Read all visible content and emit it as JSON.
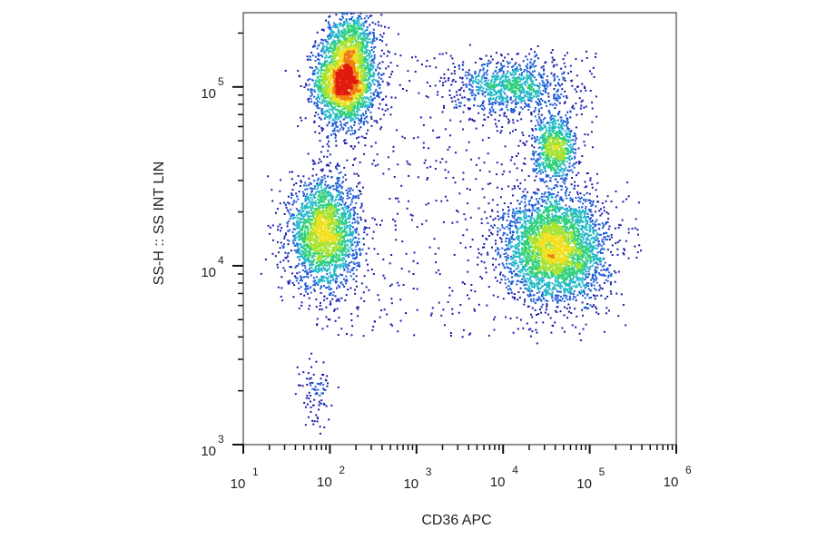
{
  "chart_data": {
    "type": "scatter",
    "subtype": "flow-cytometry density dot plot",
    "title": "",
    "xlabel": "CD36 APC",
    "ylabel": "SS-H :: SS INT LIN",
    "x_scale": "log",
    "y_scale": "log",
    "xlim": [
      10,
      1000000
    ],
    "ylim": [
      1000,
      260000
    ],
    "x_ticks": [
      {
        "value": 10,
        "base": "10",
        "exp": "1"
      },
      {
        "value": 100,
        "base": "10",
        "exp": "2"
      },
      {
        "value": 1000,
        "base": "10",
        "exp": "3"
      },
      {
        "value": 10000,
        "base": "10",
        "exp": "4"
      },
      {
        "value": 100000,
        "base": "10",
        "exp": "5"
      },
      {
        "value": 1000000,
        "base": "10",
        "exp": "6"
      }
    ],
    "y_ticks": [
      {
        "value": 1000,
        "base": "10",
        "exp": "3"
      },
      {
        "value": 10000,
        "base": "10",
        "exp": "4"
      },
      {
        "value": 100000,
        "base": "10",
        "exp": "5"
      }
    ],
    "grid": false,
    "legend": "none",
    "colormap": [
      "#1a1aa8",
      "#1c5cd6",
      "#21b8c8",
      "#2fd07a",
      "#a6e22e",
      "#f2e01e",
      "#f07d14",
      "#e01b0e"
    ],
    "populations": [
      {
        "center_x": 150,
        "center_y": 108000,
        "spread_x_decades": 0.17,
        "spread_y_decades": 0.12,
        "points": 2600
      },
      {
        "center_x": 85,
        "center_y": 15000,
        "spread_x_decades": 0.2,
        "spread_y_decades": 0.15,
        "points": 2300
      },
      {
        "center_x": 40000,
        "center_y": 12500,
        "spread_x_decades": 0.3,
        "spread_y_decades": 0.15,
        "points": 3400
      },
      {
        "center_x": 40000,
        "center_y": 45000,
        "spread_x_decades": 0.12,
        "spread_y_decades": 0.09,
        "points": 800
      },
      {
        "center_x": 13000,
        "center_y": 100000,
        "spread_x_decades": 0.32,
        "spread_y_decades": 0.08,
        "points": 900
      },
      {
        "center_x": 180,
        "center_y": 190000,
        "spread_x_decades": 0.15,
        "spread_y_decades": 0.08,
        "points": 500
      },
      {
        "center_x": 70,
        "center_y": 2000,
        "spread_x_decades": 0.1,
        "spread_y_decades": 0.12,
        "points": 90
      }
    ]
  }
}
